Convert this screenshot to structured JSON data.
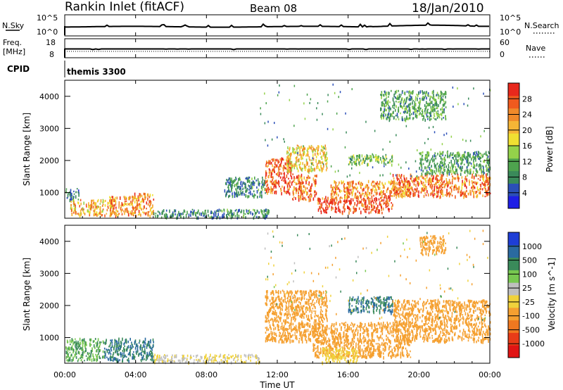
{
  "header": {
    "station": "Rankin Inlet (fitACF)",
    "beam": "Beam 08",
    "date": "18/Jan/2010"
  },
  "strip_panels": {
    "nsky": {
      "label": "N.Sky",
      "left_ticks": [
        "10^5",
        "10^0"
      ],
      "right_label": "N.Search",
      "right_ticks": [
        "10^5",
        "10^0"
      ]
    },
    "freq": {
      "label_line1": "Freq.",
      "label_line2": "[MHz]",
      "left_ticks": [
        "18",
        "8"
      ],
      "right_label": "Nave",
      "right_ticks": [
        "60",
        "0"
      ]
    },
    "cpid": {
      "label": "CPID",
      "value": "themis 3300"
    }
  },
  "axes": {
    "ylabel": "Slant Range [km]",
    "xlabel": "Time UT",
    "y_ticks": [
      "1000",
      "2000",
      "3000",
      "4000"
    ],
    "x_ticks": [
      "00:00",
      "04:00",
      "08:00",
      "12:00",
      "16:00",
      "20:00",
      "00:00"
    ]
  },
  "colorbars": {
    "power": {
      "label": "Power [dB]",
      "ticks": [
        "4",
        "8",
        "12",
        "16",
        "20",
        "24",
        "28"
      ],
      "colors": [
        "#1e1ee6",
        "#2b4fb8",
        "#3a8a5a",
        "#4ea34e",
        "#94d24a",
        "#f0e032",
        "#f5b536",
        "#f08a2a",
        "#f05a1e",
        "#e8281c"
      ]
    },
    "velocity": {
      "label": "Velocity [m s^-1]",
      "ticks": [
        "1000",
        "500",
        "100",
        "25",
        "-25",
        "-100",
        "-500",
        "-1000"
      ],
      "colors": [
        "#1e3ed6",
        "#2a6aa0",
        "#3a8a5a",
        "#78c850",
        "#bfbfbf",
        "#f0d23c",
        "#f5a030",
        "#f07820",
        "#e83c18",
        "#e01414"
      ]
    }
  },
  "chart_data": [
    {
      "type": "heatmap",
      "name": "power",
      "x_unit": "hours UT",
      "y_unit": "km",
      "xlim": [
        0,
        24
      ],
      "ylim": [
        200,
        4500
      ],
      "colorbar_range": [
        0,
        30
      ],
      "regions": [
        {
          "x0": 0.0,
          "x1": 0.8,
          "y0": 800,
          "y1": 1150,
          "level": 6
        },
        {
          "x0": 0.3,
          "x1": 2.8,
          "y0": 300,
          "y1": 800,
          "level": 20
        },
        {
          "x0": 2.5,
          "x1": 3.8,
          "y0": 300,
          "y1": 900,
          "level": 22
        },
        {
          "x0": 3.8,
          "x1": 5.0,
          "y0": 300,
          "y1": 1000,
          "level": 22
        },
        {
          "x0": 5.0,
          "x1": 11.5,
          "y0": 250,
          "y1": 500,
          "level": 8
        },
        {
          "x0": 9.0,
          "x1": 11.3,
          "y0": 900,
          "y1": 1500,
          "level": 8
        },
        {
          "x0": 11.3,
          "x1": 12.8,
          "y0": 1000,
          "y1": 2100,
          "level": 26
        },
        {
          "x0": 12.5,
          "x1": 14.8,
          "y0": 1700,
          "y1": 2500,
          "level": 18
        },
        {
          "x0": 12.8,
          "x1": 14.2,
          "y0": 800,
          "y1": 1600,
          "level": 24
        },
        {
          "x0": 14.2,
          "x1": 18.5,
          "y0": 400,
          "y1": 900,
          "level": 28
        },
        {
          "x0": 15.0,
          "x1": 19.5,
          "y0": 900,
          "y1": 1400,
          "level": 22
        },
        {
          "x0": 16.0,
          "x1": 18.5,
          "y0": 1900,
          "y1": 2200,
          "level": 12
        },
        {
          "x0": 18.5,
          "x1": 24.0,
          "y0": 900,
          "y1": 1600,
          "level": 24
        },
        {
          "x0": 20.0,
          "x1": 24.0,
          "y0": 1600,
          "y1": 2300,
          "level": 10
        },
        {
          "x0": 17.8,
          "x1": 21.5,
          "y0": 3300,
          "y1": 4200,
          "level": 10
        }
      ]
    },
    {
      "type": "heatmap",
      "name": "velocity",
      "x_unit": "hours UT",
      "y_unit": "km",
      "xlim": [
        0,
        24
      ],
      "ylim": [
        200,
        4500
      ],
      "colorbar_range": [
        -1000,
        1000
      ],
      "regions": [
        {
          "x0": 0.0,
          "x1": 2.2,
          "y0": 300,
          "y1": 1000,
          "level": 25
        },
        {
          "x0": 2.2,
          "x1": 5.0,
          "y0": 300,
          "y1": 1000,
          "level": 100
        },
        {
          "x0": 5.0,
          "x1": 11.0,
          "y0": 250,
          "y1": 500,
          "level": -25
        },
        {
          "x0": 11.3,
          "x1": 14.8,
          "y0": 900,
          "y1": 2500,
          "level": -300
        },
        {
          "x0": 14.0,
          "x1": 19.5,
          "y0": 400,
          "y1": 1500,
          "level": -300
        },
        {
          "x0": 14.5,
          "x1": 16.5,
          "y0": 250,
          "y1": 700,
          "level": -50
        },
        {
          "x0": 16.0,
          "x1": 18.5,
          "y0": 1800,
          "y1": 2300,
          "level": 100
        },
        {
          "x0": 18.5,
          "x1": 24.0,
          "y0": 900,
          "y1": 2200,
          "level": -200
        },
        {
          "x0": 20.0,
          "x1": 21.5,
          "y0": 3600,
          "y1": 4200,
          "level": -200
        }
      ]
    }
  ]
}
